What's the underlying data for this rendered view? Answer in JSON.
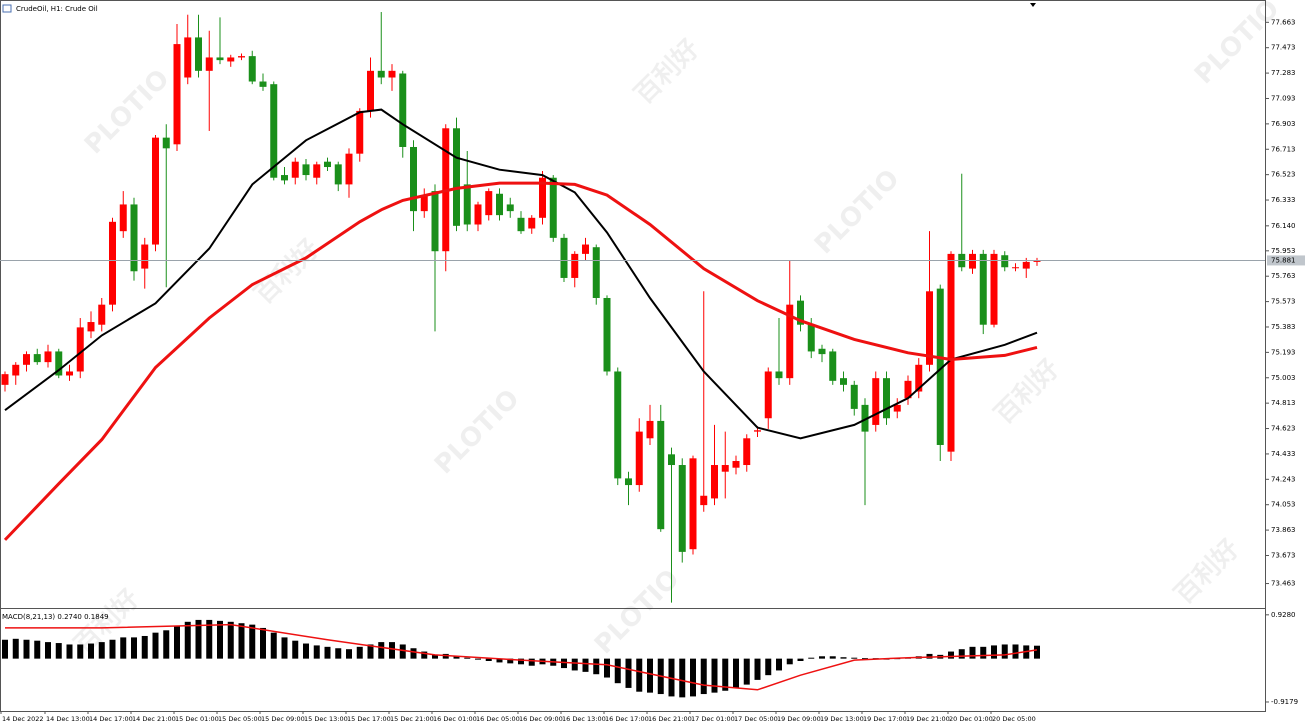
{
  "watermark": [
    "PLOTIO",
    "百利好"
  ],
  "chart_data": [
    {
      "type": "candlestick",
      "title": "CrudeOil, H1:  Crude Oil",
      "up_color": "#ff0000",
      "down_color": "#1a8f1a",
      "open": [
        74.95,
        75.02,
        75.1,
        75.18,
        75.12,
        75.2,
        75.02,
        75.05,
        75.35,
        75.4,
        75.55,
        76.1,
        76.3,
        75.82,
        76.0,
        76.8,
        76.75,
        77.25,
        77.55,
        77.3,
        77.4,
        77.37,
        77.4,
        77.41,
        77.22,
        77.2,
        76.52,
        76.5,
        76.6,
        76.5,
        76.62,
        76.6,
        76.45,
        76.68,
        77.0,
        77.3,
        77.25,
        77.28,
        76.73,
        76.25,
        76.4,
        75.95,
        76.87,
        76.45,
        76.15,
        76.22,
        76.38,
        76.3,
        76.2,
        76.12,
        76.2,
        76.5,
        76.05,
        75.75,
        75.93,
        75.98,
        75.6,
        75.05,
        74.25,
        74.2,
        74.55,
        74.68,
        74.43,
        74.35,
        73.72,
        74.05,
        74.1,
        74.3,
        74.33,
        74.35,
        74.6,
        74.7,
        75.05,
        75.0,
        75.58,
        75.4,
        75.22,
        75.2,
        75.0,
        74.95,
        74.8,
        74.65,
        75.0,
        74.75,
        74.85,
        74.9,
        75.1,
        75.67,
        74.45,
        75.93,
        75.82,
        75.93,
        75.4,
        75.92,
        75.83,
        75.82,
        75.87
      ],
      "high": [
        75.05,
        75.12,
        75.2,
        75.22,
        75.25,
        75.22,
        75.1,
        75.45,
        75.5,
        75.6,
        76.2,
        76.4,
        76.35,
        76.05,
        76.82,
        76.9,
        77.65,
        77.72,
        77.72,
        77.6,
        77.7,
        77.42,
        77.43,
        77.45,
        77.28,
        77.22,
        76.58,
        76.65,
        76.64,
        76.62,
        76.65,
        76.62,
        76.72,
        77.02,
        77.4,
        77.74,
        77.35,
        77.3,
        76.78,
        76.42,
        76.45,
        76.9,
        76.95,
        76.7,
        76.32,
        76.42,
        76.42,
        76.35,
        76.25,
        76.22,
        76.55,
        76.52,
        76.08,
        75.95,
        76.05,
        76.0,
        75.62,
        75.08,
        74.3,
        74.7,
        74.8,
        74.8,
        74.48,
        74.4,
        74.42,
        75.65,
        74.65,
        74.6,
        74.42,
        74.58,
        74.64,
        75.08,
        75.45,
        75.88,
        75.62,
        75.45,
        75.25,
        75.22,
        75.05,
        74.98,
        74.85,
        75.05,
        75.05,
        74.85,
        75.02,
        75.15,
        76.1,
        75.7,
        75.95,
        76.53,
        75.96,
        75.96,
        75.96,
        75.95,
        75.86,
        75.9,
        75.9
      ],
      "low": [
        74.9,
        74.95,
        75.05,
        75.1,
        75.08,
        75.0,
        74.98,
        75.0,
        75.3,
        75.35,
        75.5,
        76.05,
        75.73,
        75.67,
        75.95,
        75.68,
        76.7,
        77.2,
        77.25,
        76.85,
        77.35,
        77.33,
        77.38,
        77.2,
        77.15,
        76.48,
        76.45,
        76.45,
        76.48,
        76.45,
        76.55,
        76.4,
        76.35,
        76.62,
        76.95,
        77.2,
        77.15,
        76.65,
        76.1,
        76.2,
        75.35,
        75.8,
        76.1,
        76.1,
        76.1,
        76.18,
        76.18,
        76.2,
        76.08,
        76.08,
        76.15,
        76.02,
        75.72,
        75.68,
        75.88,
        75.55,
        75.02,
        74.2,
        74.05,
        74.15,
        74.5,
        73.85,
        73.32,
        73.62,
        73.68,
        74.0,
        74.05,
        74.1,
        74.28,
        74.3,
        74.56,
        74.62,
        74.95,
        74.95,
        75.35,
        75.15,
        75.12,
        74.95,
        74.9,
        74.72,
        74.05,
        74.6,
        74.65,
        74.7,
        74.8,
        74.85,
        75.05,
        74.38,
        74.38,
        75.8,
        75.78,
        75.33,
        75.38,
        75.8,
        75.8,
        75.75,
        75.84
      ],
      "close": [
        75.03,
        75.1,
        75.18,
        75.12,
        75.2,
        75.02,
        75.05,
        75.38,
        75.42,
        75.55,
        76.17,
        76.3,
        75.8,
        76.0,
        76.8,
        76.72,
        77.5,
        77.55,
        77.3,
        77.4,
        77.38,
        77.4,
        77.41,
        77.22,
        77.18,
        76.5,
        76.48,
        76.62,
        76.52,
        76.6,
        76.58,
        76.45,
        76.68,
        77.0,
        77.3,
        77.25,
        77.3,
        76.73,
        76.25,
        76.37,
        75.95,
        76.87,
        76.14,
        76.15,
        76.3,
        76.4,
        76.22,
        76.25,
        76.1,
        76.2,
        76.5,
        76.05,
        75.75,
        75.93,
        76.0,
        75.6,
        75.05,
        74.25,
        74.2,
        74.6,
        74.68,
        73.87,
        74.35,
        73.7,
        74.4,
        74.12,
        74.35,
        74.35,
        74.38,
        74.55,
        74.61,
        75.05,
        75.0,
        75.55,
        75.4,
        75.2,
        75.18,
        74.98,
        74.95,
        74.77,
        74.6,
        75.0,
        74.7,
        74.8,
        74.98,
        75.1,
        75.65,
        74.5,
        75.93,
        75.83,
        75.93,
        75.4,
        75.93,
        75.83,
        75.83,
        75.87,
        75.88
      ],
      "lines": [
        {
          "color": "#000000",
          "x": [
            0,
            5,
            9,
            14,
            19,
            23,
            28,
            33,
            35,
            37,
            42,
            46,
            50,
            53,
            56,
            60,
            65,
            70,
            74,
            79,
            84,
            88,
            93,
            96
          ],
          "values": [
            74.76,
            75.06,
            75.32,
            75.56,
            75.97,
            76.45,
            76.78,
            76.99,
            77.01,
            76.9,
            76.65,
            76.56,
            76.52,
            76.39,
            76.09,
            75.6,
            75.05,
            74.63,
            74.55,
            74.65,
            74.85,
            75.14,
            75.25,
            75.34
          ]
        },
        {
          "color": "#ee1111",
          "x": [
            0,
            5,
            9,
            14,
            19,
            23,
            28,
            33,
            35,
            37,
            42,
            46,
            50,
            53,
            56,
            60,
            65,
            70,
            74,
            79,
            84,
            88,
            93,
            96
          ],
          "values": [
            73.79,
            74.21,
            74.54,
            75.08,
            75.45,
            75.7,
            75.9,
            76.17,
            76.26,
            76.33,
            76.42,
            76.46,
            76.46,
            76.45,
            76.37,
            76.15,
            75.82,
            75.58,
            75.43,
            75.29,
            75.19,
            75.14,
            75.17,
            75.23
          ]
        }
      ],
      "current_price": 75.881,
      "ylim": [
        73.28,
        77.83
      ],
      "yticks": [
        77.663,
        77.473,
        77.283,
        77.093,
        76.903,
        76.713,
        76.523,
        76.333,
        {
          "value": 76.14,
          "label": "76.140"
        },
        75.953,
        75.763,
        75.573,
        75.383,
        75.193,
        75.003,
        74.813,
        74.623,
        74.433,
        74.243,
        74.053,
        73.863,
        73.673,
        73.463
      ],
      "time_labels": [
        "14 Dec 2022",
        "14 Dec 13:00",
        "14 Dec 17:00",
        "14 Dec 21:00",
        "15 Dec 01:00",
        "15 Dec 05:00",
        "15 Dec 09:00",
        "15 Dec 13:00",
        "15 Dec 17:00",
        "15 Dec 21:00",
        "16 Dec 01:00",
        "16 Dec 05:00",
        "16 Dec 09:00",
        "16 Dec 13:00",
        "16 Dec 17:00",
        "16 Dec 21:00",
        "17 Dec 01:00",
        "17 Dec 05:00",
        "19 Dec 09:00",
        "19 Dec 13:00",
        "19 Dec 17:00",
        "19 Dec 21:00",
        "20 Dec 01:00",
        "20 Dec 05:00"
      ]
    },
    {
      "type": "macd",
      "label": "MACD(8,21,13) 0.2740 0.1849",
      "histogram_color": "#000000",
      "histogram": [
        0.4,
        0.42,
        0.4,
        0.38,
        0.35,
        0.33,
        0.3,
        0.3,
        0.32,
        0.35,
        0.4,
        0.45,
        0.45,
        0.48,
        0.55,
        0.6,
        0.7,
        0.78,
        0.82,
        0.82,
        0.8,
        0.78,
        0.75,
        0.72,
        0.65,
        0.55,
        0.45,
        0.38,
        0.32,
        0.28,
        0.25,
        0.22,
        0.2,
        0.25,
        0.3,
        0.35,
        0.35,
        0.3,
        0.22,
        0.15,
        0.08,
        0.1,
        0.05,
        0.02,
        -0.02,
        -0.05,
        -0.08,
        -0.1,
        -0.12,
        -0.15,
        -0.12,
        -0.15,
        -0.2,
        -0.25,
        -0.28,
        -0.33,
        -0.4,
        -0.52,
        -0.62,
        -0.7,
        -0.72,
        -0.75,
        -0.8,
        -0.82,
        -0.8,
        -0.75,
        -0.72,
        -0.68,
        -0.62,
        -0.55,
        -0.45,
        -0.35,
        -0.25,
        -0.12,
        -0.05,
        0.02,
        0.05,
        0.05,
        0.03,
        0.02,
        0.01,
        0.01,
        -0.01,
        0.01,
        0.02,
        0.05,
        0.1,
        0.08,
        0.15,
        0.2,
        0.25,
        0.25,
        0.28,
        0.3,
        0.3,
        0.28,
        0.274
      ],
      "signal": {
        "color": "#ee1111",
        "x": [
          0,
          9,
          21,
          30,
          40,
          48,
          56,
          65,
          70,
          74,
          79,
          84,
          93,
          96
        ],
        "values": [
          0.65,
          0.65,
          0.72,
          0.4,
          0.08,
          -0.03,
          -0.13,
          -0.56,
          -0.66,
          -0.35,
          -0.03,
          0.02,
          0.08,
          0.1849
        ]
      },
      "ylim": [
        -1.13,
        1.03
      ],
      "yticks": [
        {
          "value": 0.928,
          "label": "0.9280"
        },
        {
          "value": -0.9179,
          "label": "-0.9179"
        }
      ]
    }
  ]
}
